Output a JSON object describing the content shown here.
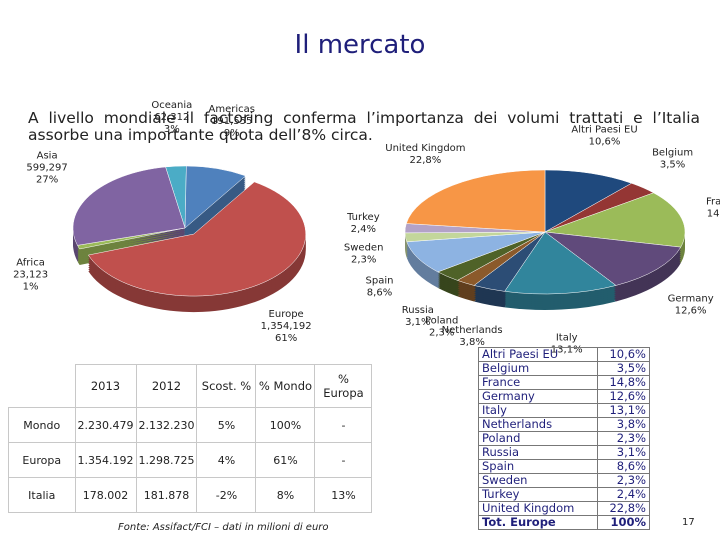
{
  "title": "Il mercato",
  "text": "A livello mondiale il factoring conferma l’importanza dei volumi trattati e l’Italia assorbe una importante quota dell’8% circa.",
  "chart_data": [
    {
      "type": "pie",
      "categories": [
        "Oceania",
        "Americas",
        "Europe",
        "Africa",
        "Asia"
      ],
      "amounts": [
        "62.312",
        "191,555",
        "1,354,192",
        "23,123",
        "599,297"
      ],
      "values": [
        3,
        9,
        61,
        1,
        27
      ],
      "value_labels": [
        "3%",
        "9%",
        "61%",
        "1%",
        "27%"
      ],
      "colors": [
        "#4bacc6",
        "#4f81bd",
        "#c0504d",
        "#9bbb59",
        "#8064a2"
      ],
      "exploded": [
        false,
        false,
        true,
        false,
        false
      ]
    },
    {
      "type": "pie",
      "categories": [
        "Altri Paesi EU",
        "Belgium",
        "France",
        "Germany",
        "Italy",
        "Netherlands",
        "Poland",
        "Russia",
        "Spain",
        "Sweden",
        "Turkey",
        "United Kingdom"
      ],
      "values": [
        10.6,
        3.5,
        14.8,
        12.6,
        13.1,
        3.8,
        2.3,
        3.1,
        8.6,
        2.3,
        2.4,
        22.8
      ],
      "value_labels": [
        "10,6%",
        "3,5%",
        "14,8%",
        "12,6%",
        "13,1%",
        "3,8%",
        "2,3%",
        "3,1%",
        "8,6%",
        "2,3%",
        "2,4%",
        "22,8%"
      ],
      "colors": [
        "#1f497d",
        "#943634",
        "#9bbb59",
        "#604a7b",
        "#31859c",
        "#2c4d75",
        "#8b5a2b",
        "#4f6228",
        "#8db3e2",
        "#c3d69b",
        "#b3a2c7",
        "#f79646"
      ]
    }
  ],
  "europe_list": {
    "total_label": "Tot. Europe",
    "total_value": "100%"
  },
  "table": {
    "header": [
      "2013",
      "2012",
      "Scost. %",
      "% Mondo",
      "% Europa"
    ],
    "rows": [
      [
        "Mondo",
        "2.230.479",
        "2.132.230",
        "5%",
        "100%",
        "-"
      ],
      [
        "Europa",
        "1.354.192",
        "1.298.725",
        "4%",
        "61%",
        "-"
      ],
      [
        "Italia",
        "178.002",
        "181.878",
        "-2%",
        "8%",
        "13%"
      ]
    ]
  },
  "source": "Fonte: Assifact/FCI – dati in milioni di euro",
  "page_number": "17"
}
